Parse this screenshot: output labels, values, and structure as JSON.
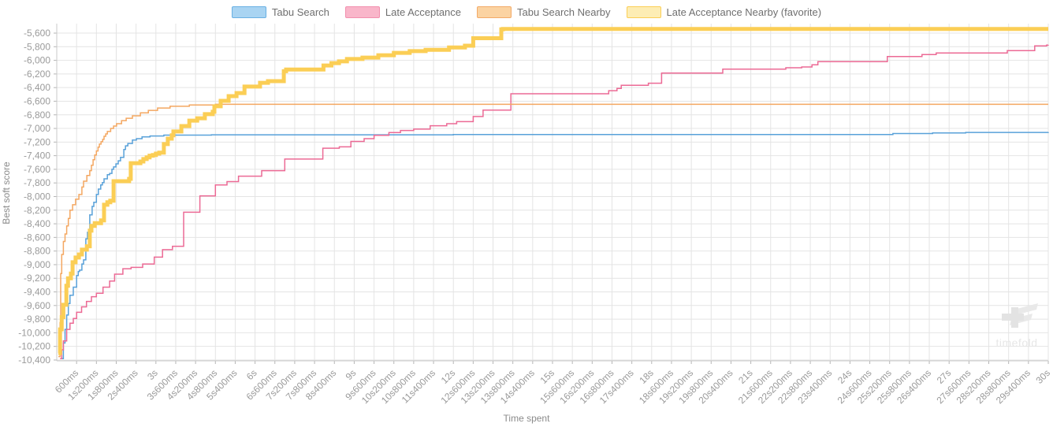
{
  "legend": {
    "items": [
      {
        "label": "Tabu Search",
        "fill": "#a9d4f2",
        "border": "#69b0e3"
      },
      {
        "label": "Late Acceptance",
        "fill": "#f9b6ca",
        "border": "#f28fae"
      },
      {
        "label": "Tabu Search Nearby",
        "fill": "#fbd3a2",
        "border": "#f3aa67"
      },
      {
        "label": "Late Acceptance Nearby (favorite)",
        "fill": "#fdedb4",
        "border": "#fbce55"
      }
    ]
  },
  "watermark": {
    "text": "timefold"
  },
  "chart_data": {
    "type": "line",
    "title": "",
    "xlabel": "Time spent",
    "ylabel": "Best soft score",
    "x_unit": "ms",
    "xlim": [
      0,
      30000
    ],
    "ylim": [
      -10412,
      -5461
    ],
    "grid": true,
    "legend_position": "top-center",
    "colors": {
      "grid": "#e4e4e4",
      "axis": "#c9c9c9",
      "tick": "#b5b5b5",
      "tick_text": "#9a9a9a"
    },
    "x_tick_ms": [
      600,
      1200,
      1800,
      2400,
      3000,
      3600,
      4200,
      4800,
      5400,
      6000,
      6600,
      7200,
      7800,
      8400,
      9000,
      9600,
      10200,
      10800,
      11400,
      12000,
      12600,
      13200,
      13800,
      14400,
      15000,
      15600,
      16200,
      16800,
      17400,
      18000,
      18600,
      19200,
      19800,
      20400,
      21000,
      21600,
      22200,
      22800,
      23400,
      24000,
      24600,
      25200,
      25800,
      26400,
      27000,
      27600,
      28200,
      28800,
      29400,
      30000
    ],
    "x_tick_labels": [
      "600ms",
      "1s200ms",
      "1s800ms",
      "2s400ms",
      "3s",
      "3s600ms",
      "4s200ms",
      "4s800ms",
      "5s400ms",
      "6s",
      "6s600ms",
      "7s200ms",
      "7s800ms",
      "8s400ms",
      "9s",
      "9s600ms",
      "10s200ms",
      "10s800ms",
      "11s400ms",
      "12s",
      "12s600ms",
      "13s200ms",
      "13s800ms",
      "14s400ms",
      "15s",
      "15s600ms",
      "16s200ms",
      "16s800ms",
      "17s400ms",
      "18s",
      "18s600ms",
      "19s200ms",
      "19s800ms",
      "20s400ms",
      "21s",
      "21s600ms",
      "22s200ms",
      "22s800ms",
      "23s400ms",
      "24s",
      "24s600ms",
      "25s200ms",
      "25s800ms",
      "26s400ms",
      "27s",
      "27s600ms",
      "28s200ms",
      "28s800ms",
      "29s400ms",
      "30s"
    ],
    "y_tick_values": [
      -5600,
      -5800,
      -6000,
      -6200,
      -6400,
      -6600,
      -6800,
      -7000,
      -7200,
      -7400,
      -7600,
      -7800,
      -8000,
      -8200,
      -8400,
      -8600,
      -8800,
      -9000,
      -9200,
      -9400,
      -9600,
      -9800,
      -10000,
      -10200,
      -10400
    ],
    "y_tick_labels": [
      "-5,600",
      "-5,800",
      "-6,000",
      "-6,200",
      "-6,400",
      "-6,600",
      "-6,800",
      "-7,000",
      "-7,200",
      "-7,400",
      "-7,600",
      "-7,800",
      "-8,000",
      "-8,200",
      "-8,400",
      "-8,600",
      "-8,800",
      "-9,000",
      "-9,200",
      "-9,400",
      "-9,600",
      "-9,800",
      "-10,000",
      "-10,200",
      "-10,400"
    ],
    "series": [
      {
        "name": "Tabu Search",
        "color": "#58a1d9",
        "width": 1.5,
        "step": true,
        "points": [
          [
            150,
            -10380
          ],
          [
            200,
            -10150
          ],
          [
            250,
            -9950
          ],
          [
            300,
            -9740
          ],
          [
            350,
            -9570
          ],
          [
            400,
            -9450
          ],
          [
            500,
            -9330
          ],
          [
            600,
            -9160
          ],
          [
            650,
            -9100
          ],
          [
            690,
            -9080
          ],
          [
            760,
            -8990
          ],
          [
            810,
            -8930
          ],
          [
            880,
            -8620
          ],
          [
            930,
            -8525
          ],
          [
            1000,
            -8270
          ],
          [
            1070,
            -8145
          ],
          [
            1120,
            -8085
          ],
          [
            1200,
            -7970
          ],
          [
            1260,
            -7890
          ],
          [
            1330,
            -7830
          ],
          [
            1380,
            -7795
          ],
          [
            1430,
            -7740
          ],
          [
            1530,
            -7680
          ],
          [
            1600,
            -7660
          ],
          [
            1670,
            -7600
          ],
          [
            1720,
            -7565
          ],
          [
            1790,
            -7520
          ],
          [
            1860,
            -7475
          ],
          [
            1930,
            -7425
          ],
          [
            2030,
            -7310
          ],
          [
            2080,
            -7255
          ],
          [
            2150,
            -7220
          ],
          [
            2290,
            -7170
          ],
          [
            2410,
            -7150
          ],
          [
            2580,
            -7125
          ],
          [
            2820,
            -7110
          ],
          [
            3240,
            -7098
          ],
          [
            4680,
            -7093
          ],
          [
            12000,
            -7090
          ],
          [
            25300,
            -7075
          ],
          [
            26500,
            -7065
          ],
          [
            27500,
            -7058
          ],
          [
            30000,
            -7055
          ]
        ]
      },
      {
        "name": "Late Acceptance",
        "color": "#ec6a95",
        "width": 1.5,
        "step": true,
        "points": [
          [
            100,
            -10380
          ],
          [
            150,
            -10250
          ],
          [
            200,
            -10120
          ],
          [
            300,
            -9950
          ],
          [
            400,
            -9860
          ],
          [
            500,
            -9790
          ],
          [
            600,
            -9700
          ],
          [
            750,
            -9620
          ],
          [
            900,
            -9540
          ],
          [
            1050,
            -9470
          ],
          [
            1200,
            -9420
          ],
          [
            1400,
            -9330
          ],
          [
            1600,
            -9240
          ],
          [
            1750,
            -9140
          ],
          [
            2000,
            -9060
          ],
          [
            2250,
            -9040
          ],
          [
            2600,
            -8990
          ],
          [
            2950,
            -8890
          ],
          [
            3200,
            -8780
          ],
          [
            3500,
            -8730
          ],
          [
            3840,
            -8230
          ],
          [
            4330,
            -7990
          ],
          [
            4800,
            -7830
          ],
          [
            5150,
            -7780
          ],
          [
            5500,
            -7700
          ],
          [
            6200,
            -7620
          ],
          [
            6900,
            -7450
          ],
          [
            8050,
            -7290
          ],
          [
            8550,
            -7270
          ],
          [
            8900,
            -7190
          ],
          [
            9300,
            -7150
          ],
          [
            9600,
            -7100
          ],
          [
            10050,
            -7060
          ],
          [
            10400,
            -7030
          ],
          [
            10800,
            -7010
          ],
          [
            11300,
            -6960
          ],
          [
            11800,
            -6930
          ],
          [
            12100,
            -6900
          ],
          [
            12600,
            -6825
          ],
          [
            12900,
            -6730
          ],
          [
            13740,
            -6490
          ],
          [
            16700,
            -6445
          ],
          [
            16950,
            -6413
          ],
          [
            17080,
            -6367
          ],
          [
            17900,
            -6336
          ],
          [
            18300,
            -6186
          ],
          [
            20150,
            -6128
          ],
          [
            22060,
            -6109
          ],
          [
            22540,
            -6097
          ],
          [
            22850,
            -6066
          ],
          [
            23030,
            -6020
          ],
          [
            25130,
            -5943
          ],
          [
            26180,
            -5915
          ],
          [
            26610,
            -5892
          ],
          [
            28760,
            -5858
          ],
          [
            29590,
            -5788
          ],
          [
            29950,
            -5776
          ],
          [
            30000,
            -5775
          ]
        ]
      },
      {
        "name": "Tabu Search Nearby",
        "color": "#f4a761",
        "width": 1.5,
        "step": true,
        "points": [
          [
            50,
            -10350
          ],
          [
            100,
            -9850
          ],
          [
            120,
            -9130
          ],
          [
            150,
            -8850
          ],
          [
            200,
            -8660
          ],
          [
            250,
            -8550
          ],
          [
            300,
            -8430
          ],
          [
            350,
            -8320
          ],
          [
            400,
            -8200
          ],
          [
            480,
            -8120
          ],
          [
            570,
            -8040
          ],
          [
            670,
            -7970
          ],
          [
            760,
            -7860
          ],
          [
            810,
            -7775
          ],
          [
            910,
            -7690
          ],
          [
            1000,
            -7620
          ],
          [
            1050,
            -7540
          ],
          [
            1100,
            -7460
          ],
          [
            1150,
            -7390
          ],
          [
            1200,
            -7330
          ],
          [
            1250,
            -7275
          ],
          [
            1290,
            -7230
          ],
          [
            1340,
            -7195
          ],
          [
            1390,
            -7160
          ],
          [
            1430,
            -7115
          ],
          [
            1480,
            -7080
          ],
          [
            1530,
            -7045
          ],
          [
            1630,
            -7000
          ],
          [
            1720,
            -6965
          ],
          [
            1810,
            -6930
          ],
          [
            1960,
            -6885
          ],
          [
            2100,
            -6850
          ],
          [
            2290,
            -6815
          ],
          [
            2530,
            -6770
          ],
          [
            2770,
            -6735
          ],
          [
            3050,
            -6700
          ],
          [
            3430,
            -6675
          ],
          [
            4010,
            -6655
          ],
          [
            4800,
            -6645
          ],
          [
            30000,
            -6645
          ]
        ]
      },
      {
        "name": "Late Acceptance Nearby (favorite)",
        "color": "#fbce55",
        "width": 5,
        "step": true,
        "points": [
          [
            50,
            -10300
          ],
          [
            100,
            -9950
          ],
          [
            150,
            -9770
          ],
          [
            200,
            -9590
          ],
          [
            290,
            -9310
          ],
          [
            340,
            -9200
          ],
          [
            430,
            -9130
          ],
          [
            480,
            -8965
          ],
          [
            570,
            -8895
          ],
          [
            670,
            -8850
          ],
          [
            760,
            -8780
          ],
          [
            910,
            -8730
          ],
          [
            1000,
            -8500
          ],
          [
            1050,
            -8430
          ],
          [
            1150,
            -8390
          ],
          [
            1340,
            -8350
          ],
          [
            1430,
            -8120
          ],
          [
            1530,
            -8085
          ],
          [
            1620,
            -8060
          ],
          [
            1720,
            -7775
          ],
          [
            2190,
            -7740
          ],
          [
            2240,
            -7510
          ],
          [
            2530,
            -7485
          ],
          [
            2620,
            -7450
          ],
          [
            2720,
            -7425
          ],
          [
            2810,
            -7400
          ],
          [
            2910,
            -7390
          ],
          [
            3000,
            -7370
          ],
          [
            3100,
            -7355
          ],
          [
            3240,
            -7230
          ],
          [
            3360,
            -7150
          ],
          [
            3480,
            -7100
          ],
          [
            3530,
            -7045
          ],
          [
            3770,
            -6965
          ],
          [
            4010,
            -6885
          ],
          [
            4250,
            -6850
          ],
          [
            4480,
            -6790
          ],
          [
            4720,
            -6755
          ],
          [
            4770,
            -6675
          ],
          [
            4960,
            -6595
          ],
          [
            5200,
            -6525
          ],
          [
            5440,
            -6480
          ],
          [
            5680,
            -6385
          ],
          [
            6150,
            -6330
          ],
          [
            6390,
            -6305
          ],
          [
            6870,
            -6160
          ],
          [
            6940,
            -6135
          ],
          [
            8070,
            -6075
          ],
          [
            8310,
            -6040
          ],
          [
            8540,
            -6015
          ],
          [
            8780,
            -5980
          ],
          [
            9250,
            -5960
          ],
          [
            9730,
            -5925
          ],
          [
            10200,
            -5890
          ],
          [
            10680,
            -5865
          ],
          [
            11160,
            -5845
          ],
          [
            11870,
            -5810
          ],
          [
            12350,
            -5785
          ],
          [
            12600,
            -5675
          ],
          [
            13450,
            -5545
          ],
          [
            13500,
            -5540
          ],
          [
            30000,
            -5540
          ]
        ]
      }
    ]
  }
}
